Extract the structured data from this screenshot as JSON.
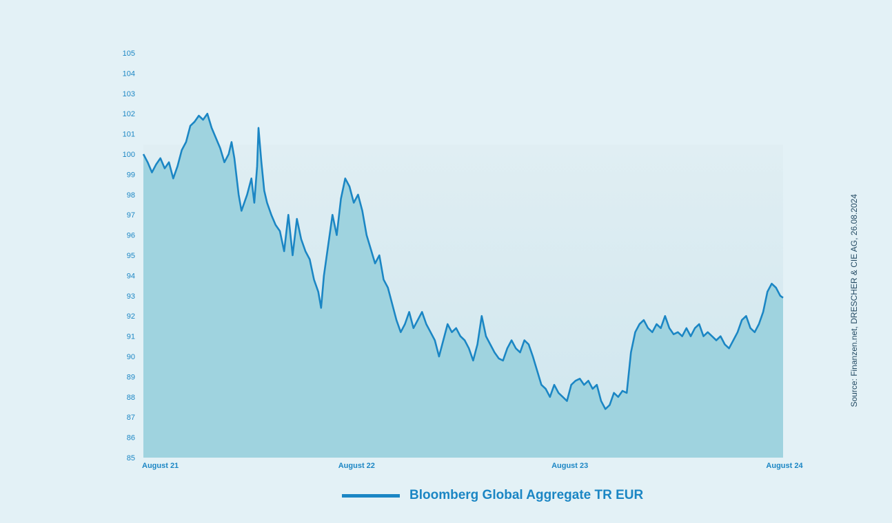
{
  "chart_data": {
    "type": "area",
    "series": [
      {
        "name": "Bloomberg Global Aggregate TR EUR",
        "color": "#1b86c4",
        "fill": "#9fd3df",
        "points": [
          [
            0.0,
            100.0
          ],
          [
            0.3,
            99.6
          ],
          [
            0.6,
            99.1
          ],
          [
            0.9,
            99.5
          ],
          [
            1.2,
            99.8
          ],
          [
            1.5,
            99.3
          ],
          [
            1.8,
            99.6
          ],
          [
            2.1,
            98.8
          ],
          [
            2.4,
            99.4
          ],
          [
            2.7,
            100.2
          ],
          [
            3.0,
            100.6
          ],
          [
            3.3,
            101.4
          ],
          [
            3.6,
            101.6
          ],
          [
            3.9,
            101.9
          ],
          [
            4.2,
            101.7
          ],
          [
            4.5,
            102.0
          ],
          [
            4.8,
            101.3
          ],
          [
            5.1,
            100.8
          ],
          [
            5.4,
            100.3
          ],
          [
            5.7,
            99.6
          ],
          [
            6.0,
            100.0
          ],
          [
            6.2,
            100.6
          ],
          [
            6.4,
            99.8
          ],
          [
            6.7,
            98.0
          ],
          [
            6.9,
            97.2
          ],
          [
            7.1,
            97.6
          ],
          [
            7.3,
            98.0
          ],
          [
            7.6,
            98.8
          ],
          [
            7.8,
            97.6
          ],
          [
            8.0,
            99.4
          ],
          [
            8.1,
            101.3
          ],
          [
            8.3,
            99.6
          ],
          [
            8.5,
            98.2
          ],
          [
            8.7,
            97.6
          ],
          [
            9.0,
            97.0
          ],
          [
            9.3,
            96.5
          ],
          [
            9.6,
            96.2
          ],
          [
            9.9,
            95.2
          ],
          [
            10.2,
            97.0
          ],
          [
            10.5,
            95.0
          ],
          [
            10.8,
            96.8
          ],
          [
            11.1,
            95.8
          ],
          [
            11.4,
            95.2
          ],
          [
            11.7,
            94.8
          ],
          [
            12.0,
            93.8
          ],
          [
            12.3,
            93.2
          ],
          [
            12.5,
            92.4
          ],
          [
            12.7,
            94.0
          ],
          [
            13.0,
            95.5
          ],
          [
            13.3,
            97.0
          ],
          [
            13.6,
            96.0
          ],
          [
            13.9,
            97.8
          ],
          [
            14.2,
            98.8
          ],
          [
            14.5,
            98.4
          ],
          [
            14.8,
            97.6
          ],
          [
            15.1,
            98.0
          ],
          [
            15.4,
            97.2
          ],
          [
            15.7,
            96.0
          ],
          [
            16.0,
            95.3
          ],
          [
            16.3,
            94.6
          ],
          [
            16.6,
            95.0
          ],
          [
            16.9,
            93.8
          ],
          [
            17.2,
            93.4
          ],
          [
            17.5,
            92.6
          ],
          [
            17.8,
            91.8
          ],
          [
            18.1,
            91.2
          ],
          [
            18.4,
            91.6
          ],
          [
            18.7,
            92.2
          ],
          [
            19.0,
            91.4
          ],
          [
            19.3,
            91.8
          ],
          [
            19.6,
            92.2
          ],
          [
            19.9,
            91.6
          ],
          [
            20.2,
            91.2
          ],
          [
            20.5,
            90.8
          ],
          [
            20.8,
            90.0
          ],
          [
            21.1,
            90.8
          ],
          [
            21.4,
            91.6
          ],
          [
            21.7,
            91.2
          ],
          [
            22.0,
            91.4
          ],
          [
            22.3,
            91.0
          ],
          [
            22.6,
            90.8
          ],
          [
            22.9,
            90.4
          ],
          [
            23.2,
            89.8
          ],
          [
            23.5,
            90.6
          ],
          [
            23.8,
            92.0
          ],
          [
            24.1,
            91.0
          ],
          [
            24.4,
            90.6
          ],
          [
            24.7,
            90.2
          ],
          [
            25.0,
            89.9
          ],
          [
            25.3,
            89.8
          ],
          [
            25.6,
            90.4
          ],
          [
            25.9,
            90.8
          ],
          [
            26.2,
            90.4
          ],
          [
            26.5,
            90.2
          ],
          [
            26.8,
            90.8
          ],
          [
            27.1,
            90.6
          ],
          [
            27.4,
            90.0
          ],
          [
            27.7,
            89.3
          ],
          [
            28.0,
            88.6
          ],
          [
            28.3,
            88.4
          ],
          [
            28.6,
            88.0
          ],
          [
            28.9,
            88.6
          ],
          [
            29.2,
            88.2
          ],
          [
            29.5,
            88.0
          ],
          [
            29.8,
            87.8
          ],
          [
            30.1,
            88.6
          ],
          [
            30.4,
            88.8
          ],
          [
            30.7,
            88.9
          ],
          [
            31.0,
            88.6
          ],
          [
            31.3,
            88.8
          ],
          [
            31.6,
            88.4
          ],
          [
            31.9,
            88.6
          ],
          [
            32.2,
            87.8
          ],
          [
            32.5,
            87.4
          ],
          [
            32.8,
            87.6
          ],
          [
            33.1,
            88.2
          ],
          [
            33.4,
            88.0
          ],
          [
            33.7,
            88.3
          ],
          [
            34.0,
            88.2
          ],
          [
            34.3,
            90.2
          ],
          [
            34.6,
            91.2
          ],
          [
            34.9,
            91.6
          ],
          [
            35.2,
            91.8
          ],
          [
            35.5,
            91.4
          ],
          [
            35.8,
            91.2
          ],
          [
            36.1,
            91.6
          ],
          [
            36.4,
            91.4
          ],
          [
            36.7,
            92.0
          ],
          [
            37.0,
            91.4
          ],
          [
            37.3,
            91.1
          ],
          [
            37.6,
            91.2
          ],
          [
            37.9,
            91.0
          ],
          [
            38.2,
            91.4
          ],
          [
            38.5,
            91.0
          ],
          [
            38.8,
            91.4
          ],
          [
            39.1,
            91.6
          ],
          [
            39.4,
            91.0
          ],
          [
            39.7,
            91.2
          ],
          [
            40.0,
            91.0
          ],
          [
            40.3,
            90.8
          ],
          [
            40.6,
            91.0
          ],
          [
            40.9,
            90.6
          ],
          [
            41.2,
            90.4
          ],
          [
            41.5,
            90.8
          ],
          [
            41.8,
            91.2
          ],
          [
            42.1,
            91.8
          ],
          [
            42.4,
            92.0
          ],
          [
            42.7,
            91.4
          ],
          [
            43.0,
            91.2
          ],
          [
            43.3,
            91.6
          ],
          [
            43.6,
            92.2
          ],
          [
            43.9,
            93.2
          ],
          [
            44.2,
            93.6
          ],
          [
            44.5,
            93.4
          ],
          [
            44.8,
            93.0
          ],
          [
            45.0,
            92.9
          ]
        ]
      }
    ],
    "x_tick_labels": [
      "August 21",
      "August 22",
      "August 23",
      "August 24"
    ],
    "x_tick_values": [
      0,
      15,
      30,
      45
    ],
    "ylim": [
      85,
      105
    ],
    "y_ticks": [
      85,
      86,
      87,
      88,
      89,
      90,
      91,
      92,
      93,
      94,
      95,
      96,
      97,
      98,
      99,
      100,
      101,
      102,
      103,
      104,
      105
    ],
    "grid": false,
    "legend_position": "bottom-center"
  },
  "legend": {
    "label": "Bloomberg Global Aggregate TR EUR"
  },
  "source_note": "Source: Finanzen.net, DRESCHER & CIE AG, 26.08.2024"
}
